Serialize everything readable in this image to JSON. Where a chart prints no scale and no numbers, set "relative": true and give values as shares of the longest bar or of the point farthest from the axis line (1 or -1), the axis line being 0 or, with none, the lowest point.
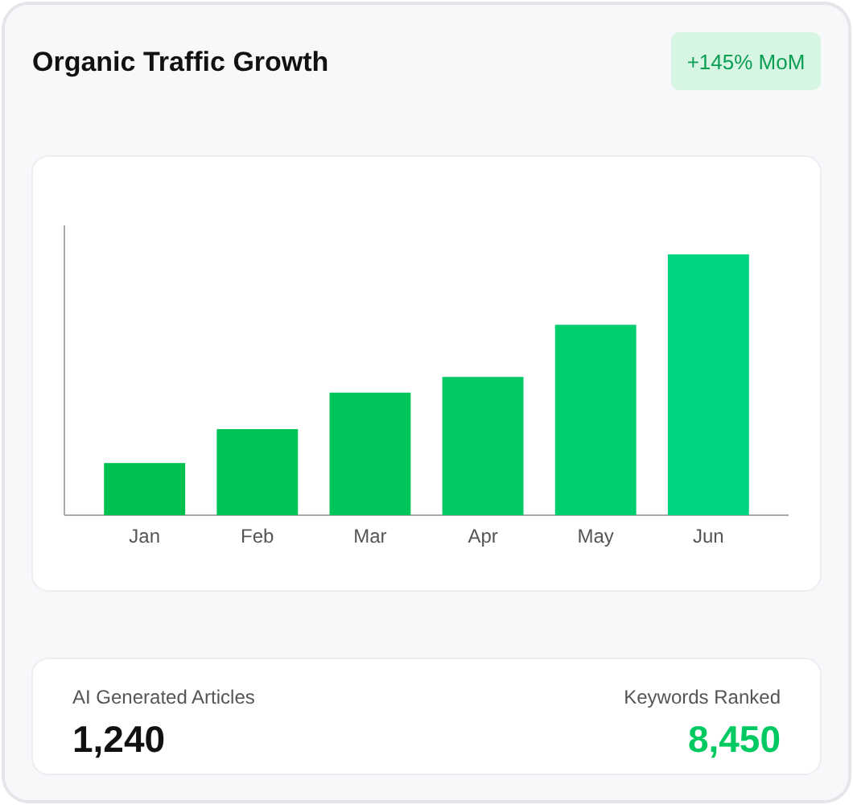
{
  "chart_data": {
    "type": "bar",
    "title": "Organic Traffic Growth",
    "categories": [
      "Jan",
      "Feb",
      "Mar",
      "Apr",
      "May",
      "Jun"
    ],
    "values": [
      0.2,
      0.33,
      0.47,
      0.53,
      0.73,
      1
    ],
    "colors": [
      "#00c04f",
      "#00c355",
      "#00c65c",
      "#00c964",
      "#00cd6e",
      "#00d47f"
    ],
    "relative": true,
    "annotations": [
      "+145% MoM",
      "AI Generated Articles",
      "1,240",
      "Keywords Ranked",
      "8,450"
    ]
  }
}
